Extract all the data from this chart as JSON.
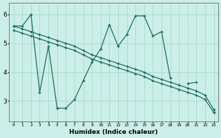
{
  "xlabel": "Humidex (Indice chaleur)",
  "bg_color": "#cceee8",
  "line_color": "#1a6b5e",
  "grid_color": "#aaddcc",
  "x_values": [
    0,
    1,
    2,
    3,
    4,
    5,
    6,
    7,
    8,
    9,
    10,
    11,
    12,
    13,
    14,
    15,
    16,
    17,
    18,
    19,
    20,
    21,
    22,
    23
  ],
  "line1_y": [
    5.6,
    5.6,
    6.0,
    3.3,
    4.9,
    2.75,
    2.75,
    3.05,
    3.7,
    4.35,
    4.8,
    5.65,
    4.9,
    5.3,
    5.95,
    5.95,
    5.25,
    5.4,
    3.8,
    null,
    3.6,
    3.65,
    null,
    2.6
  ],
  "line2_y": [
    5.6,
    5.5,
    5.4,
    5.3,
    5.2,
    5.1,
    5.0,
    4.9,
    4.75,
    4.6,
    4.5,
    4.4,
    4.3,
    4.2,
    4.1,
    4.0,
    3.85,
    3.75,
    3.65,
    3.55,
    3.45,
    3.35,
    3.2,
    2.7
  ],
  "line3_y": [
    5.45,
    5.35,
    5.25,
    5.15,
    5.05,
    4.95,
    4.85,
    4.75,
    4.6,
    4.45,
    4.35,
    4.25,
    4.15,
    4.05,
    3.95,
    3.85,
    3.7,
    3.6,
    3.5,
    3.4,
    3.3,
    3.2,
    3.05,
    2.6
  ],
  "ylim": [
    2.3,
    6.4
  ],
  "yticks": [
    3,
    4,
    5,
    6
  ],
  "xticks": [
    0,
    1,
    2,
    3,
    4,
    5,
    6,
    7,
    8,
    9,
    10,
    11,
    12,
    13,
    14,
    15,
    16,
    17,
    18,
    19,
    20,
    21,
    22,
    23
  ]
}
